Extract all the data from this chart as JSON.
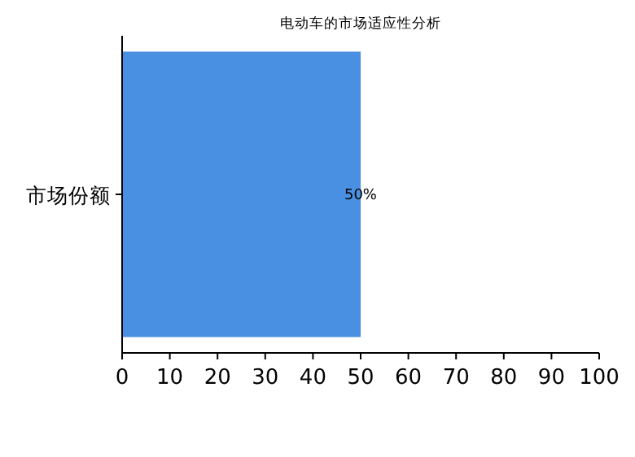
{
  "chart_data": {
    "type": "bar",
    "orientation": "horizontal",
    "title": "电动车的市场适应性分析",
    "categories": [
      "市场份额"
    ],
    "values": [
      50
    ],
    "value_labels": [
      "50%"
    ],
    "color": "#4a90e2",
    "xlim": [
      0,
      100
    ],
    "xticks": [
      0,
      10,
      20,
      30,
      40,
      50,
      60,
      70,
      80,
      90,
      100
    ]
  }
}
